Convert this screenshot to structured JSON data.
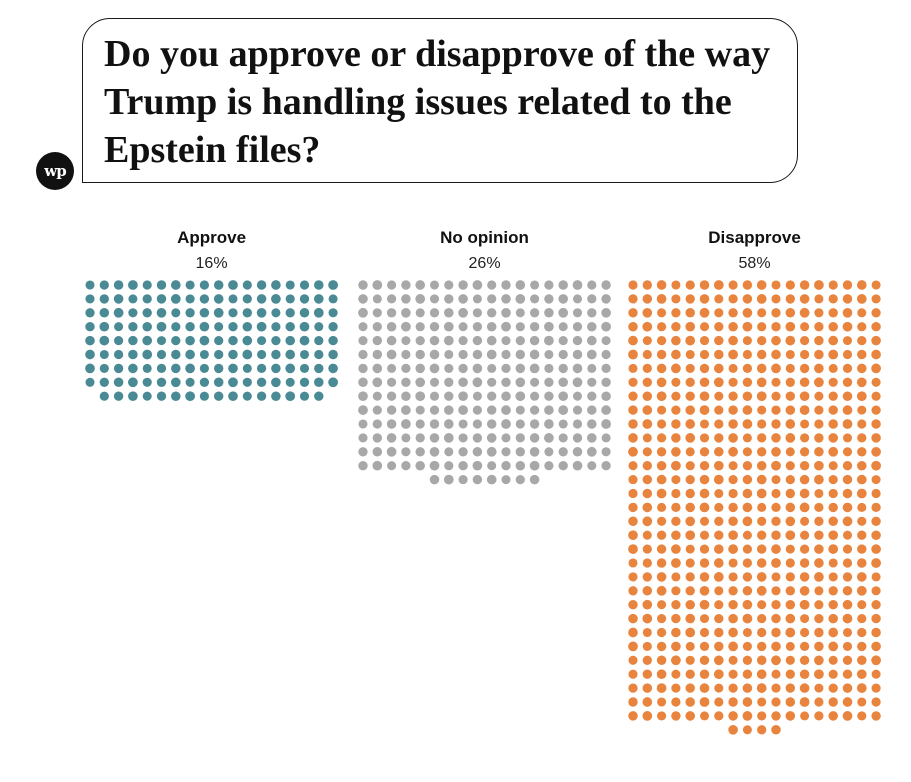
{
  "logo": {
    "text": "wp",
    "icon": "washington-post-logo-icon"
  },
  "question": "Do you approve or disapprove of the way Trump is handling issues related to the Epstein files?",
  "chart_data": {
    "type": "waffle",
    "title": "Do you approve or disapprove of the way Trump is handling issues related to the Epstein files?",
    "unit": "%",
    "series": [
      {
        "name": "Approve",
        "value": 16,
        "label": "16%",
        "color": "#4a8a94"
      },
      {
        "name": "No opinion",
        "value": 26,
        "label": "26%",
        "color": "#a8a8a8"
      },
      {
        "name": "Disapprove",
        "value": 58,
        "label": "58%",
        "color": "#e8843e"
      }
    ]
  }
}
